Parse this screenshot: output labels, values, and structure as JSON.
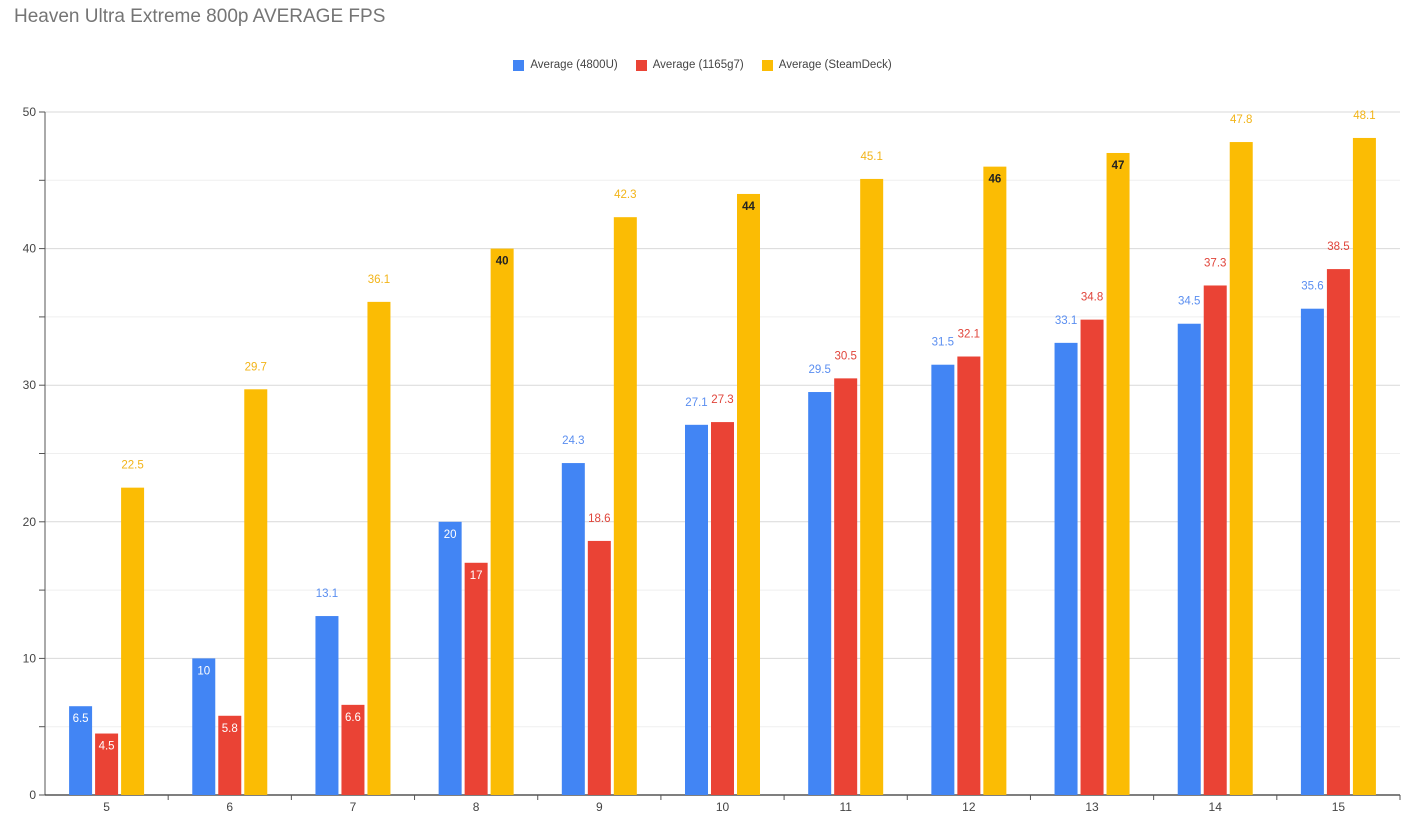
{
  "chart_data": {
    "type": "bar",
    "title": "Heaven Ultra Extreme 800p AVERAGE FPS",
    "xlabel": "",
    "ylabel": "",
    "ylim": [
      0,
      50
    ],
    "yticks": [
      0,
      10,
      20,
      30,
      40,
      50
    ],
    "categories": [
      "5",
      "6",
      "7",
      "8",
      "9",
      "10",
      "11",
      "12",
      "13",
      "14",
      "15"
    ],
    "legend_position": "top-center",
    "series": [
      {
        "name": "Average (4800U)",
        "color": "#4285F4",
        "label_color": "#5a8ef0",
        "values": [
          6.5,
          10,
          13.1,
          20,
          24.3,
          27.1,
          29.5,
          31.5,
          33.1,
          34.5,
          35.6
        ]
      },
      {
        "name": "Average (1165g7)",
        "color": "#EA4335",
        "label_color": "#e0443a",
        "values": [
          4.5,
          5.8,
          6.6,
          17,
          18.6,
          27.3,
          30.5,
          32.1,
          34.8,
          37.3,
          38.5
        ]
      },
      {
        "name": "Average (SteamDeck)",
        "color": "#FBBC04",
        "label_color": "#f2b418",
        "values": [
          22.5,
          29.7,
          36.1,
          40,
          42.3,
          44,
          45.1,
          46,
          47,
          47.8,
          48.1
        ]
      }
    ]
  }
}
